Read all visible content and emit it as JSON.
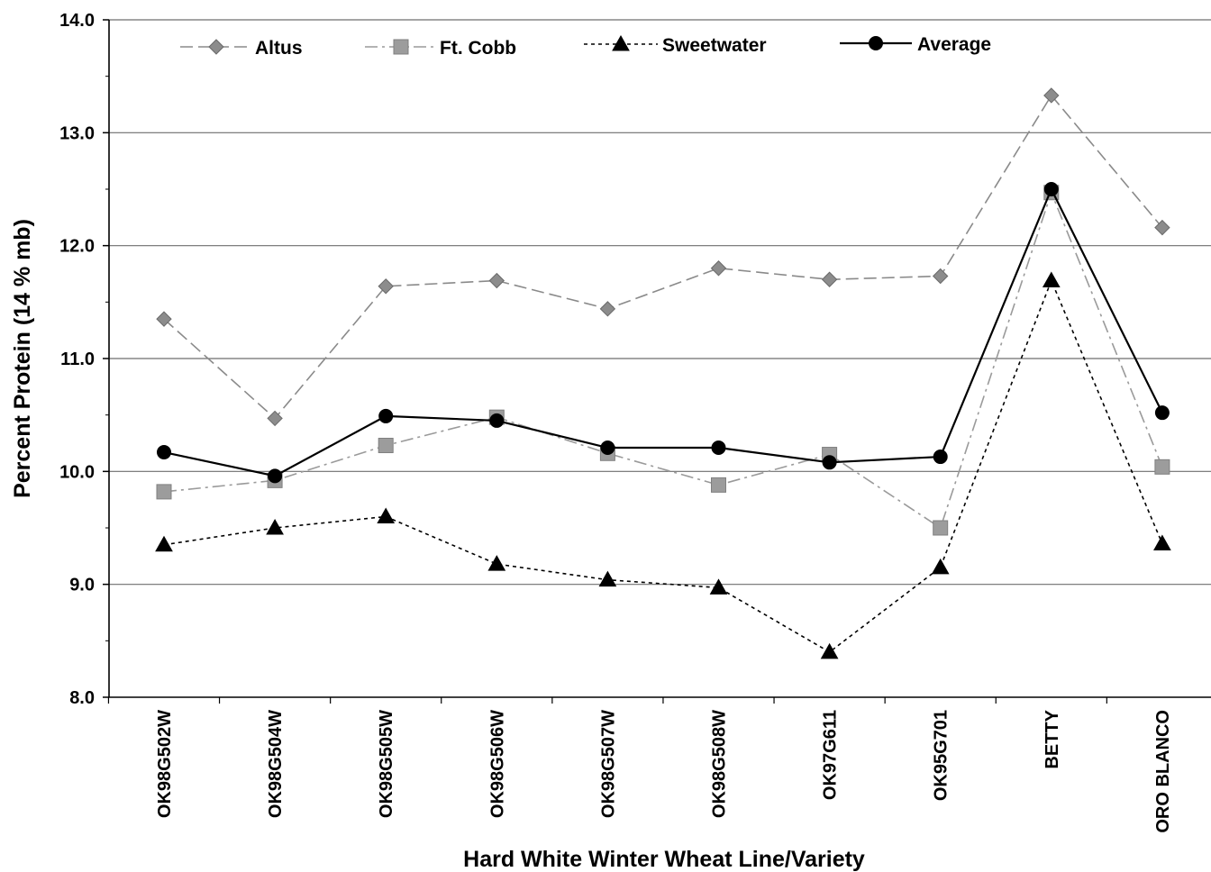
{
  "chart_data": {
    "type": "line",
    "title": "",
    "xlabel": "Hard White Winter Wheat Line/Variety",
    "ylabel": "Percent Protein (14 % mb)",
    "ylim": [
      8.0,
      14.0
    ],
    "yticks": [
      "8.0",
      "9.0",
      "10.0",
      "11.0",
      "12.0",
      "13.0",
      "14.0"
    ],
    "grid": true,
    "legend_position": "top",
    "categories": [
      "OK98G502W",
      "OK98G504W",
      "OK98G505W",
      "OK98G506W",
      "OK98G507W",
      "OK98G508W",
      "OK97G611",
      "OK95G701",
      "BETTY",
      "ORO BLANCO"
    ],
    "series": [
      {
        "name": "Altus",
        "marker": "diamond",
        "line_style": "long-dash",
        "color": "#8a8a8a",
        "values": [
          11.35,
          10.47,
          11.64,
          11.69,
          11.44,
          11.8,
          11.7,
          11.73,
          13.33,
          12.16
        ]
      },
      {
        "name": "Ft. Cobb",
        "marker": "square",
        "line_style": "dash-dot",
        "color": "#9a9a9a",
        "values": [
          9.82,
          9.92,
          10.23,
          10.48,
          10.16,
          9.88,
          10.15,
          9.5,
          12.47,
          10.04
        ]
      },
      {
        "name": "Sweetwater",
        "marker": "triangle",
        "line_style": "dotted",
        "color": "#000000",
        "values": [
          9.35,
          9.5,
          9.6,
          9.18,
          9.04,
          8.97,
          8.4,
          9.15,
          11.69,
          9.36
        ]
      },
      {
        "name": "Average",
        "marker": "circle",
        "line_style": "solid",
        "color": "#000000",
        "values": [
          10.17,
          9.96,
          10.49,
          10.45,
          10.21,
          10.21,
          10.08,
          10.13,
          12.5,
          10.52
        ]
      }
    ]
  }
}
